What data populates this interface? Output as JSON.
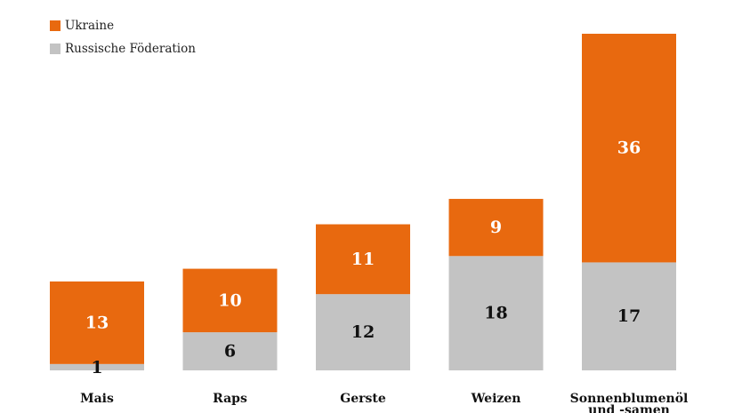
{
  "chart_data": {
    "type": "bar",
    "stacked": true,
    "categories": [
      "Mais",
      "Raps",
      "Gerste",
      "Weizen",
      "Sonnenblumenöl\nund -samen"
    ],
    "series": [
      {
        "name": "Russische Föderation",
        "color": "#c3c3c3",
        "values": [
          1,
          6,
          12,
          18,
          17
        ]
      },
      {
        "name": "Ukraine",
        "color": "#e8690f",
        "values": [
          13,
          10,
          11,
          9,
          36
        ]
      }
    ],
    "legend_order": [
      "Ukraine",
      "Russische Föderation"
    ],
    "ylim": [
      0,
      53
    ],
    "grid": false,
    "legend_position": "top-left",
    "data_labels": true
  }
}
